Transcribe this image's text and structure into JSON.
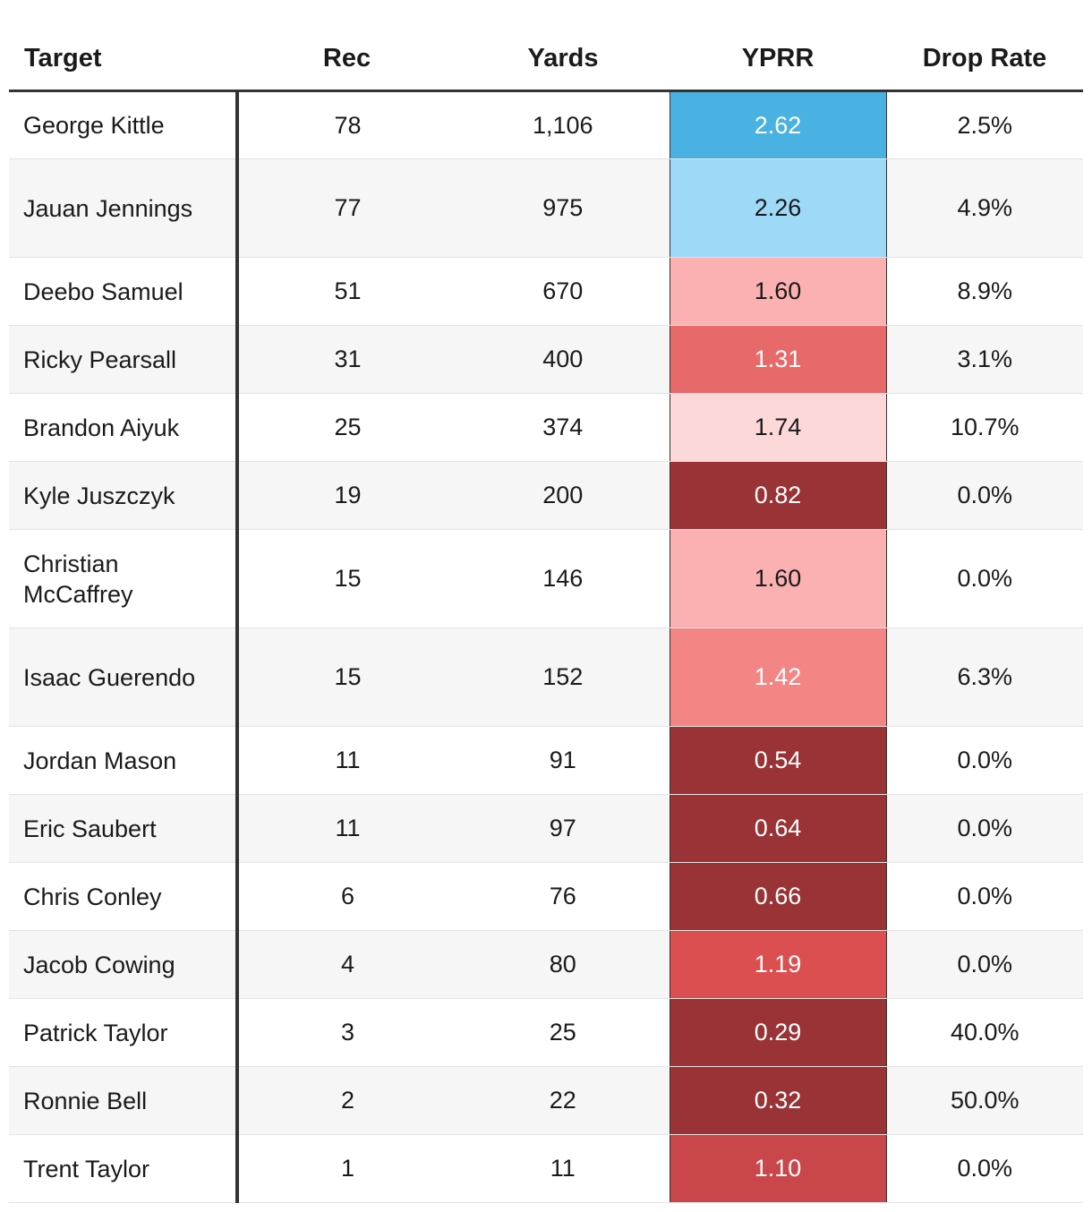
{
  "chart_data": {
    "type": "table",
    "columns": [
      "Target",
      "Rec",
      "Yards",
      "YPRR",
      "Drop Rate"
    ],
    "rows": [
      {
        "target": "George Kittle",
        "rec": "78",
        "yards": "1,106",
        "yprr": "2.62",
        "yprr_value": 2.62,
        "drop_rate": "2.5%",
        "yprr_bg": "#4ab2e2",
        "yprr_fg": "#ffffff"
      },
      {
        "target": "Jauan Jennings",
        "rec": "77",
        "yards": "975",
        "yprr": "2.26",
        "yprr_value": 2.26,
        "drop_rate": "4.9%",
        "yprr_bg": "#9ed9f8",
        "yprr_fg": "#1a1a1a"
      },
      {
        "target": "Deebo Samuel",
        "rec": "51",
        "yards": "670",
        "yprr": "1.60",
        "yprr_value": 1.6,
        "drop_rate": "8.9%",
        "yprr_bg": "#fbb1b1",
        "yprr_fg": "#1a1a1a"
      },
      {
        "target": "Ricky Pearsall",
        "rec": "31",
        "yards": "400",
        "yprr": "1.31",
        "yprr_value": 1.31,
        "drop_rate": "3.1%",
        "yprr_bg": "#e8696a",
        "yprr_fg": "#ffffff"
      },
      {
        "target": "Brandon Aiyuk",
        "rec": "25",
        "yards": "374",
        "yprr": "1.74",
        "yprr_value": 1.74,
        "drop_rate": "10.7%",
        "yprr_bg": "#fdd8d9",
        "yprr_fg": "#1a1a1a"
      },
      {
        "target": "Kyle Juszczyk",
        "rec": "19",
        "yards": "200",
        "yprr": "0.82",
        "yprr_value": 0.82,
        "drop_rate": "0.0%",
        "yprr_bg": "#993336",
        "yprr_fg": "#ffffff"
      },
      {
        "target": "Christian McCaffrey",
        "rec": "15",
        "yards": "146",
        "yprr": "1.60",
        "yprr_value": 1.6,
        "drop_rate": "0.0%",
        "yprr_bg": "#fbb1b1",
        "yprr_fg": "#1a1a1a"
      },
      {
        "target": "Isaac Guerendo",
        "rec": "15",
        "yards": "152",
        "yprr": "1.42",
        "yprr_value": 1.42,
        "drop_rate": "6.3%",
        "yprr_bg": "#f48585",
        "yprr_fg": "#ffffff"
      },
      {
        "target": "Jordan Mason",
        "rec": "11",
        "yards": "91",
        "yprr": "0.54",
        "yprr_value": 0.54,
        "drop_rate": "0.0%",
        "yprr_bg": "#993336",
        "yprr_fg": "#ffffff"
      },
      {
        "target": "Eric Saubert",
        "rec": "11",
        "yards": "97",
        "yprr": "0.64",
        "yprr_value": 0.64,
        "drop_rate": "0.0%",
        "yprr_bg": "#993336",
        "yprr_fg": "#ffffff"
      },
      {
        "target": "Chris Conley",
        "rec": "6",
        "yards": "76",
        "yprr": "0.66",
        "yprr_value": 0.66,
        "drop_rate": "0.0%",
        "yprr_bg": "#993336",
        "yprr_fg": "#ffffff"
      },
      {
        "target": "Jacob Cowing",
        "rec": "4",
        "yards": "80",
        "yprr": "1.19",
        "yprr_value": 1.19,
        "drop_rate": "0.0%",
        "yprr_bg": "#dc4f51",
        "yprr_fg": "#ffffff"
      },
      {
        "target": "Patrick Taylor",
        "rec": "3",
        "yards": "25",
        "yprr": "0.29",
        "yprr_value": 0.29,
        "drop_rate": "40.0%",
        "yprr_bg": "#993336",
        "yprr_fg": "#ffffff"
      },
      {
        "target": "Ronnie Bell",
        "rec": "2",
        "yards": "22",
        "yprr": "0.32",
        "yprr_value": 0.32,
        "drop_rate": "50.0%",
        "yprr_bg": "#993336",
        "yprr_fg": "#ffffff"
      },
      {
        "target": "Trent Taylor",
        "rec": "1",
        "yards": "11",
        "yprr": "1.10",
        "yprr_value": 1.1,
        "drop_rate": "0.0%",
        "yprr_bg": "#c9474b",
        "yprr_fg": "#ffffff"
      }
    ]
  }
}
